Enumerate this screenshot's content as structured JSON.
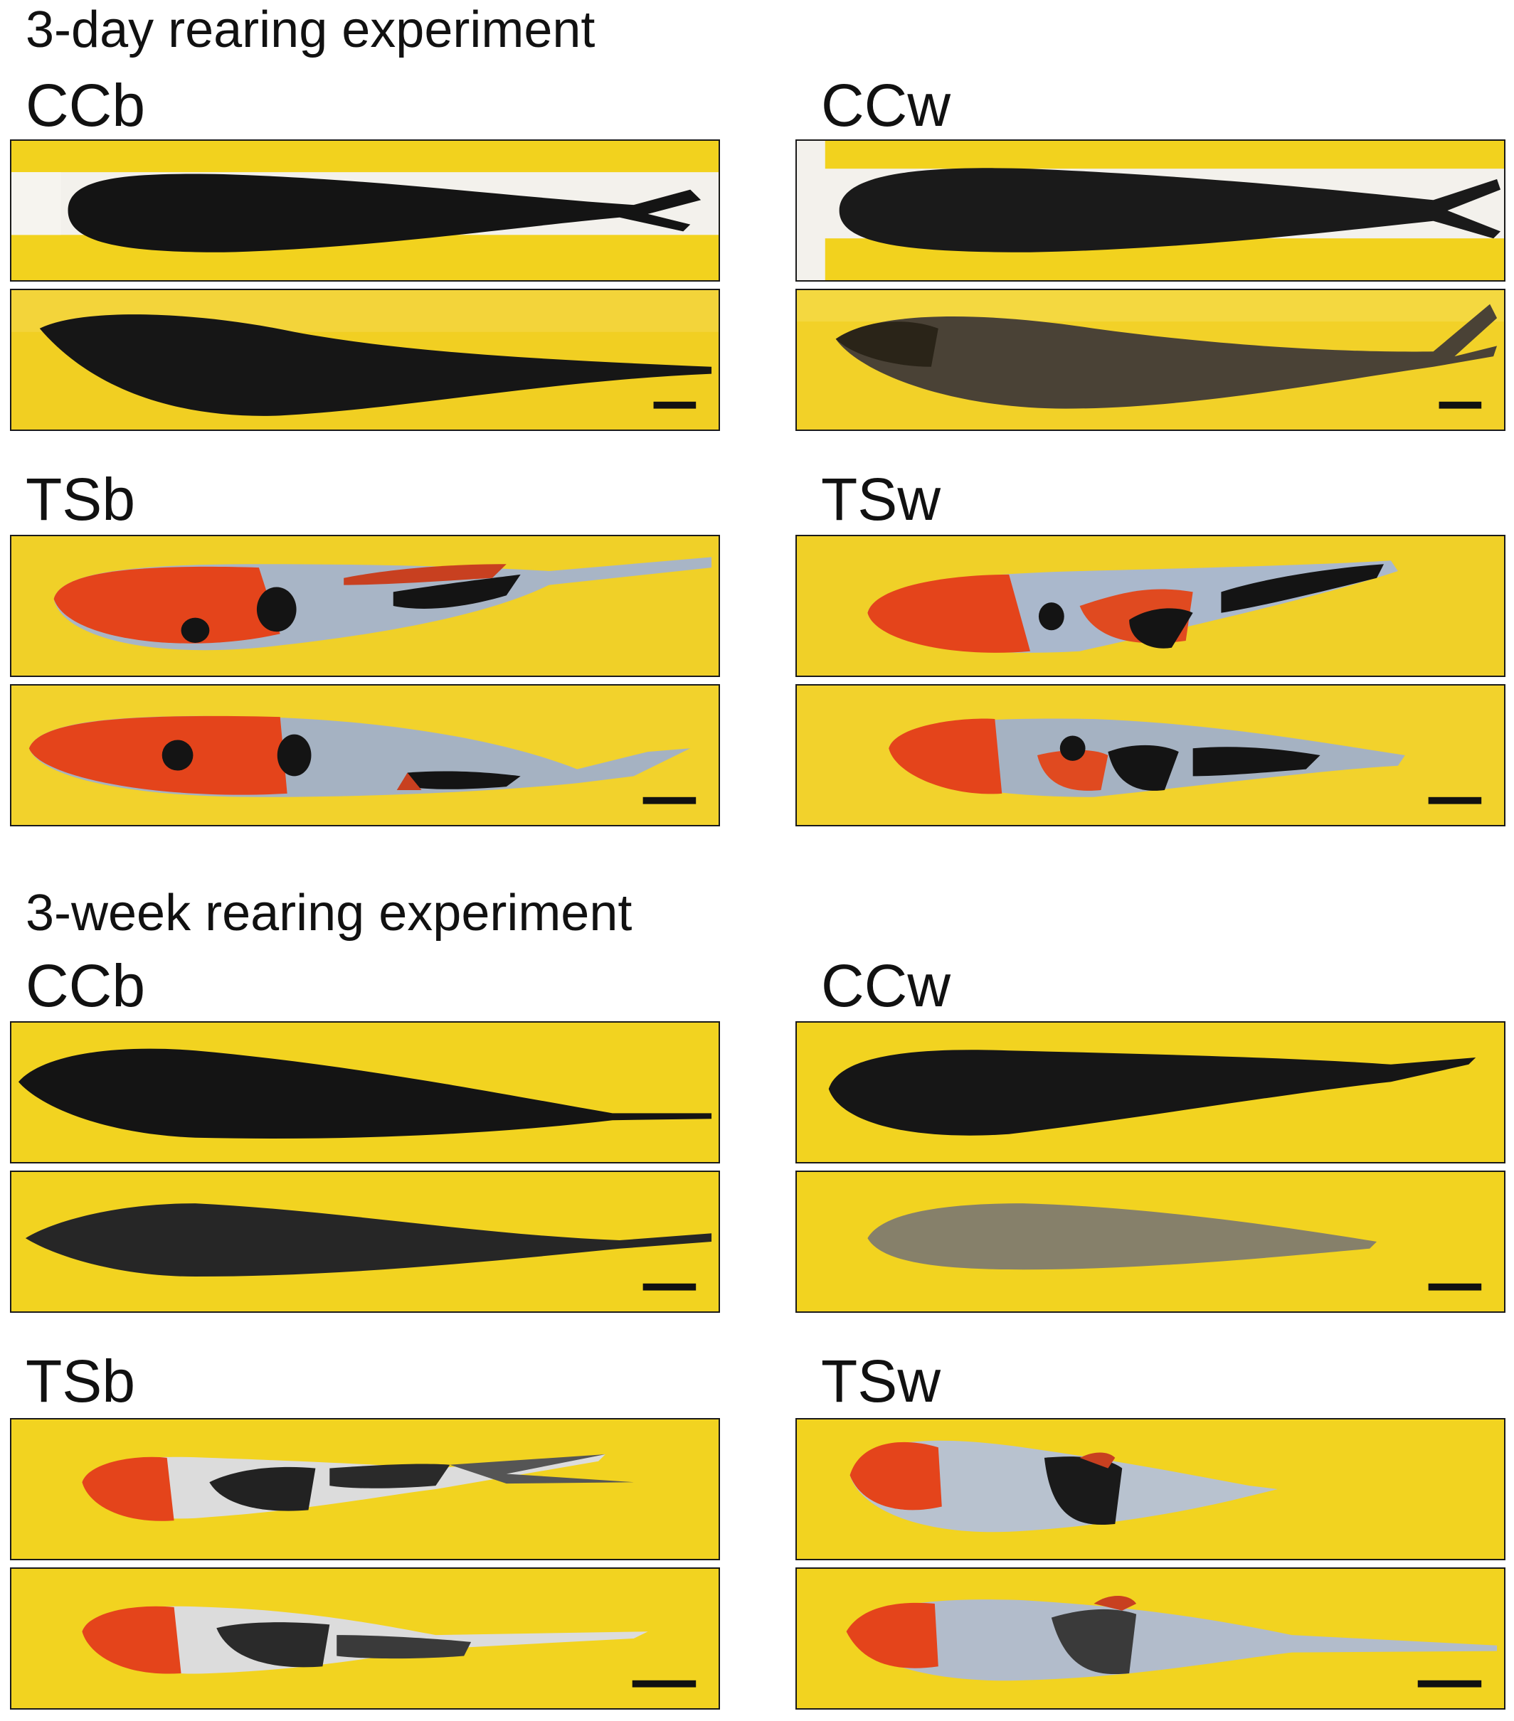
{
  "sections": [
    {
      "title": "3-day rearing experiment",
      "groups": {
        "ccb": "CCb",
        "ccw": "CCw",
        "tsb": "TSb",
        "tsw": "TSw"
      }
    },
    {
      "title": "3-week rearing experiment",
      "groups": {
        "ccb": "CCb",
        "ccw": "CCw",
        "tsb": "TSb",
        "tsw": "TSw"
      }
    }
  ],
  "colors": {
    "sponge": "#f2d21e",
    "sponge_dark": "#d9b40c",
    "border": "#1a1a1a",
    "koi_red": "#e8401a",
    "koi_white": "#aab8cc",
    "koi_black": "#151515"
  }
}
